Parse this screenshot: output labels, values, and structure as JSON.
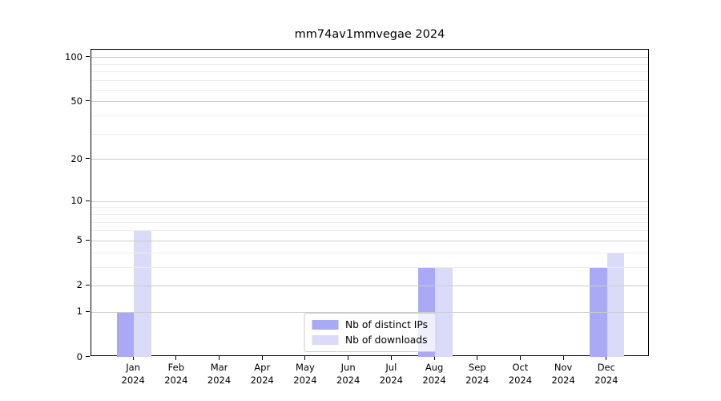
{
  "chart_data": {
    "type": "bar",
    "title": "mm74av1mmvegae 2024",
    "categories": [
      "Jan",
      "Feb",
      "Mar",
      "Apr",
      "May",
      "Jun",
      "Jul",
      "Aug",
      "Sep",
      "Oct",
      "Nov",
      "Dec"
    ],
    "x_year_label": "2024",
    "series": [
      {
        "name": "Nb of distinct IPs",
        "color": "#a9a9f5",
        "values": [
          1,
          0,
          0,
          0,
          0,
          0,
          0,
          3,
          0,
          0,
          0,
          3
        ]
      },
      {
        "name": "Nb of downloads",
        "color": "#dadaf9",
        "values": [
          6,
          0,
          0,
          0,
          0,
          0,
          0,
          3,
          0,
          0,
          0,
          4
        ]
      }
    ],
    "xlabel": "",
    "ylabel": "",
    "yscale": "log1p",
    "ylim": [
      0,
      112
    ],
    "yticks": [
      0,
      1,
      2,
      5,
      10,
      20,
      50,
      100
    ],
    "minor_yticks": [
      3,
      4,
      6,
      7,
      8,
      9,
      30,
      40,
      60,
      70,
      80,
      90
    ],
    "grid": true,
    "legend_position": "lower center"
  }
}
